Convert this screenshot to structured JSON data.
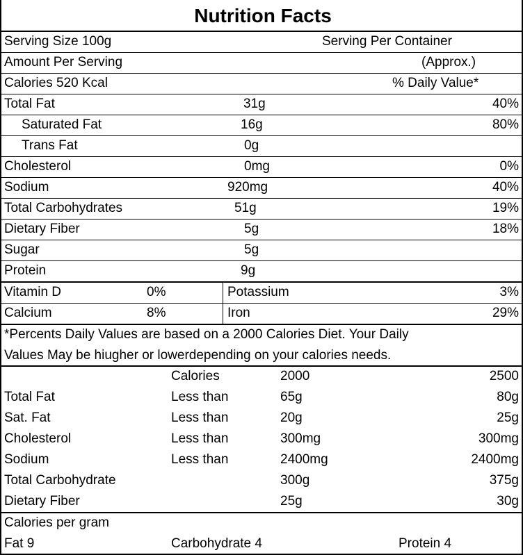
{
  "title": "Nutrition Facts",
  "header": {
    "serving_size": "Serving Size 100g",
    "servings_per_container": "Serving Per  Container",
    "amount_per_serving": "Amount Per Serving",
    "approx": "(Approx.)",
    "calories": "Calories 520 Kcal",
    "daily_value": "% Daily Value*"
  },
  "nutrients": [
    {
      "name": "Total Fat",
      "amount": "31g",
      "dv": "40%"
    },
    {
      "name": "Saturated Fat",
      "amount": "16g",
      "dv": "80%"
    },
    {
      "name": "Trans Fat",
      "amount": "0g",
      "dv": ""
    },
    {
      "name": "Cholesterol",
      "amount": "0mg",
      "dv": "0%"
    },
    {
      "name": "Sodium",
      "amount": "920mg",
      "dv": "40%"
    },
    {
      "name": "Total Carbohydrates",
      "amount": "51g",
      "dv": "19%"
    },
    {
      "name": "Dietary Fiber",
      "amount": "5g",
      "dv": "18%"
    },
    {
      "name": "Sugar",
      "amount": "5g",
      "dv": ""
    },
    {
      "name": "Protein",
      "amount": "9g",
      "dv": ""
    }
  ],
  "vitamins": [
    {
      "name1": "Vitamin D",
      "value1": "0%",
      "name2": "Potassium",
      "value2": "3%"
    },
    {
      "name1": "Calcium",
      "value1": "8%",
      "name2": "Iron",
      "value2": "29%"
    }
  ],
  "footnote": {
    "line1": "*Percents   Daily  Values  are based on a 2000 Calories Diet. Your Daily",
    "line2": "Values May be hiugher or lowerdepending on your calories needs."
  },
  "reference_table": {
    "header": {
      "label": "",
      "col1": "Calories",
      "col2": "2000",
      "col3": "2500"
    },
    "rows": [
      {
        "nutrient": "Total Fat",
        "qualifier": "Less than",
        "v2000": "65g",
        "v2500": "80g"
      },
      {
        "nutrient": "Sat. Fat",
        "qualifier": "Less than",
        "v2000": "20g",
        "v2500": "25g"
      },
      {
        "nutrient": "Cholesterol",
        "qualifier": "Less than",
        "v2000": "300mg",
        "v2500": "300mg"
      },
      {
        "nutrient": "Sodium",
        "qualifier": "Less than",
        "v2000": "2400mg",
        "v2500": "2400mg"
      },
      {
        "nutrient": "Total Carbohydrate",
        "qualifier": "",
        "v2000": "300g",
        "v2500": "375g"
      },
      {
        "nutrient": "Dietary Fiber",
        "qualifier": "",
        "v2000": "25g",
        "v2500": "30g"
      }
    ]
  },
  "calories_per_gram": {
    "heading": "Calories per gram",
    "fat": "Fat 9",
    "carbohydrate": "Carbohydrate 4",
    "protein": "Protein 4"
  }
}
